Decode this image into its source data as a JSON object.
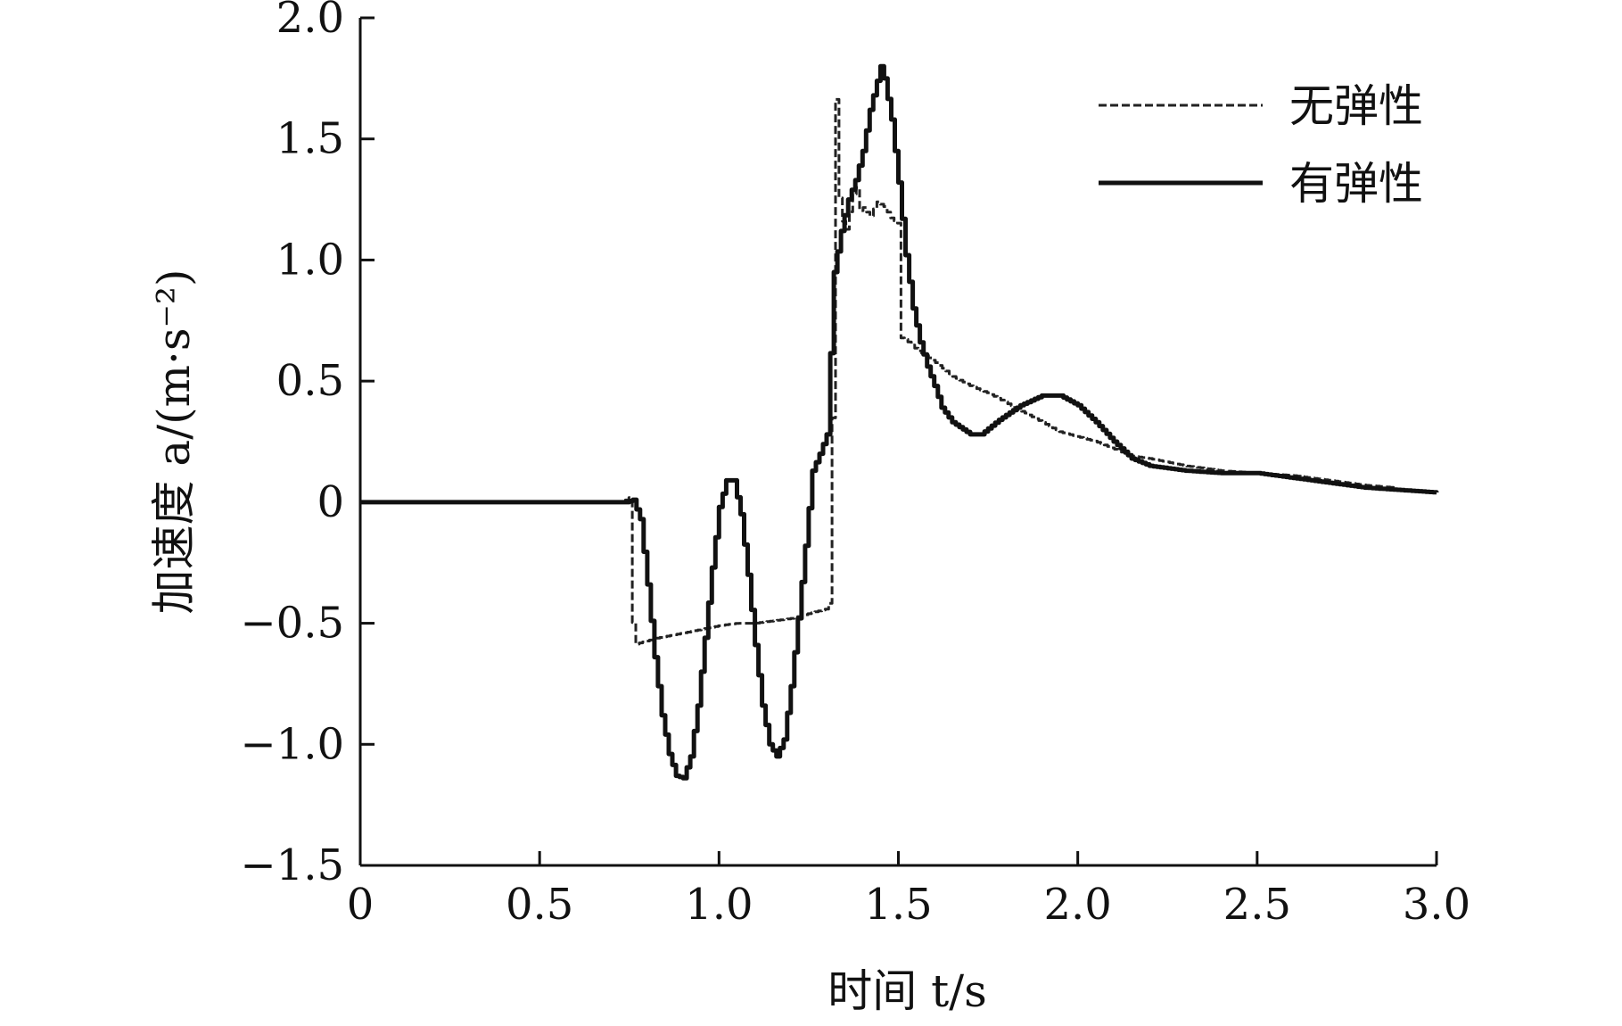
{
  "chart_data": {
    "type": "line",
    "title": "",
    "xlabel": "时间 t/s",
    "ylabel": "加速度 a/(m·s⁻²)",
    "xlim": [
      0,
      3.0
    ],
    "ylim": [
      -1.5,
      2.0
    ],
    "xticks": [
      "0",
      "0.5",
      "1.0",
      "1.5",
      "2.0",
      "2.5",
      "3.0"
    ],
    "yticks": [
      "2.0",
      "1.5",
      "1.0",
      "0.5",
      "0",
      "−0.5",
      "−1.0",
      "−1.5"
    ],
    "grid": false,
    "legend_position": "top-right",
    "series": [
      {
        "name": "无弹性",
        "style": "dashed",
        "color": "#222222",
        "x": [
          0,
          0.73,
          0.75,
          0.755,
          0.76,
          0.78,
          0.83,
          0.9,
          1.0,
          1.05,
          1.1,
          1.15,
          1.2,
          1.25,
          1.3,
          1.31,
          1.315,
          1.32,
          1.325,
          1.33,
          1.35,
          1.37,
          1.38,
          1.39,
          1.4,
          1.42,
          1.44,
          1.46,
          1.48,
          1.5,
          1.505,
          1.52,
          1.55,
          1.6,
          1.65,
          1.7,
          1.75,
          1.8,
          1.85,
          1.9,
          1.95,
          2.0,
          2.05,
          2.1,
          2.15,
          2.2,
          2.3,
          2.4,
          2.5,
          2.6,
          2.7,
          2.8,
          2.88
        ],
        "y": [
          0,
          0,
          0.02,
          -0.3,
          -0.59,
          -0.58,
          -0.56,
          -0.54,
          -0.51,
          -0.5,
          -0.5,
          -0.49,
          -0.48,
          -0.46,
          -0.44,
          -0.4,
          0.3,
          1.5,
          1.67,
          1.3,
          1.1,
          1.25,
          1.33,
          1.2,
          1.22,
          1.18,
          1.24,
          1.22,
          1.17,
          1.15,
          0.68,
          0.67,
          0.63,
          0.58,
          0.52,
          0.48,
          0.45,
          0.41,
          0.37,
          0.33,
          0.29,
          0.27,
          0.25,
          0.22,
          0.19,
          0.18,
          0.15,
          0.13,
          0.12,
          0.11,
          0.09,
          0.07,
          0.06
        ]
      },
      {
        "name": "有弹性",
        "style": "solid",
        "color": "#111111",
        "x": [
          0,
          0.74,
          0.76,
          0.78,
          0.8,
          0.82,
          0.84,
          0.86,
          0.88,
          0.9,
          0.92,
          0.94,
          0.96,
          0.98,
          1.0,
          1.02,
          1.04,
          1.06,
          1.08,
          1.1,
          1.12,
          1.14,
          1.16,
          1.18,
          1.2,
          1.22,
          1.24,
          1.26,
          1.28,
          1.3,
          1.32,
          1.34,
          1.36,
          1.38,
          1.4,
          1.42,
          1.44,
          1.45,
          1.46,
          1.48,
          1.5,
          1.52,
          1.54,
          1.56,
          1.58,
          1.6,
          1.62,
          1.65,
          1.7,
          1.73,
          1.78,
          1.84,
          1.9,
          1.95,
          2.0,
          2.05,
          2.1,
          2.15,
          2.2,
          2.3,
          2.4,
          2.5,
          2.6,
          2.7,
          2.8,
          2.9,
          3.0
        ],
        "y": [
          0,
          0,
          0.01,
          -0.07,
          -0.34,
          -0.64,
          -0.88,
          -1.04,
          -1.13,
          -1.14,
          -1.05,
          -0.84,
          -0.56,
          -0.27,
          -0.02,
          0.09,
          0.09,
          -0.05,
          -0.3,
          -0.59,
          -0.84,
          -1.0,
          -1.05,
          -0.98,
          -0.76,
          -0.48,
          -0.18,
          0.13,
          0.2,
          0.28,
          0.95,
          1.12,
          1.25,
          1.33,
          1.45,
          1.62,
          1.74,
          1.8,
          1.75,
          1.58,
          1.32,
          1.02,
          0.8,
          0.66,
          0.56,
          0.48,
          0.39,
          0.33,
          0.28,
          0.28,
          0.34,
          0.4,
          0.44,
          0.44,
          0.4,
          0.33,
          0.25,
          0.18,
          0.15,
          0.13,
          0.12,
          0.12,
          0.1,
          0.08,
          0.06,
          0.05,
          0.04
        ]
      }
    ]
  }
}
